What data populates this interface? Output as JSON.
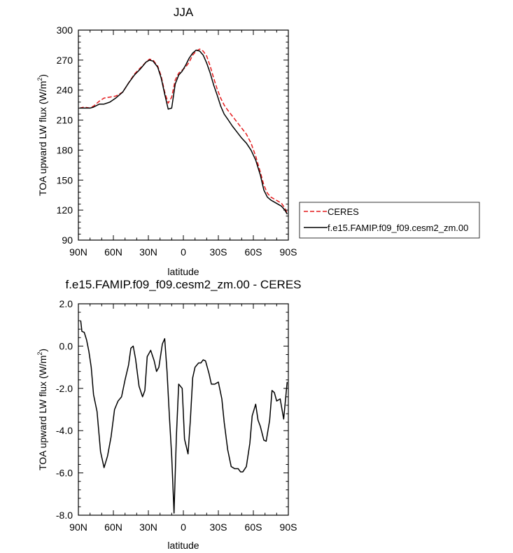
{
  "chart_data": [
    {
      "type": "line",
      "title": "JJA",
      "xlabel": "latitude",
      "ylabel": "TOA upward LW flux (W/m²)",
      "ylabel_main": "TOA upward LW flux (W/m",
      "ylabel_sup": "2",
      "ylabel_tail": ")",
      "xlim": [
        90,
        -90
      ],
      "ylim": [
        90,
        300
      ],
      "xticks": [
        {
          "value": 90,
          "label": "90N"
        },
        {
          "value": 60,
          "label": "60N"
        },
        {
          "value": 30,
          "label": "30N"
        },
        {
          "value": 0,
          "label": "0"
        },
        {
          "value": -30,
          "label": "30S"
        },
        {
          "value": -60,
          "label": "60S"
        },
        {
          "value": -90,
          "label": "90S"
        }
      ],
      "yticks": [
        {
          "value": 90,
          "label": "90"
        },
        {
          "value": 120,
          "label": "120"
        },
        {
          "value": 150,
          "label": "150"
        },
        {
          "value": 180,
          "label": "180"
        },
        {
          "value": 210,
          "label": "210"
        },
        {
          "value": 240,
          "label": "240"
        },
        {
          "value": 270,
          "label": "270"
        },
        {
          "value": 300,
          "label": "300"
        }
      ],
      "legend": {
        "placement": "right"
      },
      "series": [
        {
          "name": "CERES",
          "color": "#e41a1c",
          "dash": "dashed",
          "x": [
            89,
            85,
            80,
            77,
            72,
            68,
            63,
            58,
            52,
            47,
            42,
            37,
            32,
            29,
            26,
            22,
            19,
            16,
            13,
            10,
            7,
            4,
            1,
            -2,
            -5,
            -8,
            -11,
            -14,
            -17,
            -20,
            -23,
            -26,
            -29,
            -32,
            -35,
            -38,
            -42,
            -46,
            -50,
            -54,
            -58,
            -62,
            -66,
            -69,
            -72,
            -75,
            -78,
            -81,
            -84,
            -87,
            -89
          ],
          "y": [
            222,
            223,
            222,
            224,
            229,
            232,
            233,
            234,
            238,
            247,
            256,
            262,
            268,
            271,
            270,
            264,
            254,
            238,
            227,
            233,
            250,
            257,
            260,
            263,
            268,
            275,
            279,
            281,
            279,
            274,
            264,
            252,
            241,
            232,
            225,
            220,
            214,
            208,
            202,
            196,
            187,
            174,
            158,
            145,
            137,
            133,
            131,
            129,
            127,
            122,
            117
          ]
        },
        {
          "name": "f.e15.FAMIP.f09_f09.cesm2_zm.00",
          "color": "#000000",
          "dash": "solid",
          "x": [
            89,
            85,
            80,
            77,
            72,
            68,
            63,
            58,
            52,
            47,
            42,
            37,
            32,
            29,
            26,
            22,
            19,
            16,
            13,
            10,
            7,
            4,
            1,
            -2,
            -5,
            -8,
            -11,
            -14,
            -17,
            -20,
            -23,
            -26,
            -29,
            -32,
            -35,
            -38,
            -42,
            -46,
            -50,
            -54,
            -58,
            -62,
            -66,
            -69,
            -72,
            -75,
            -78,
            -81,
            -84,
            -87,
            -89
          ],
          "y": [
            222,
            222,
            222,
            223,
            226,
            226,
            228,
            232,
            238,
            247,
            255,
            261,
            268,
            270,
            269,
            263,
            252,
            236,
            221,
            222,
            246,
            255,
            259,
            265,
            272,
            277,
            280,
            279,
            275,
            267,
            257,
            245,
            235,
            224,
            216,
            211,
            204,
            198,
            192,
            187,
            180,
            170,
            155,
            140,
            133,
            130,
            128,
            126,
            124,
            120,
            116
          ]
        }
      ]
    },
    {
      "type": "line",
      "title": "f.e15.FAMIP.f09_f09.cesm2_zm.00 - CERES",
      "xlabel": "latitude",
      "ylabel": "TOA upward LW flux (W/m²)",
      "ylabel_main": "TOA upward LW flux (W/m",
      "ylabel_sup": "2",
      "ylabel_tail": ")",
      "xlim": [
        90,
        -90
      ],
      "ylim": [
        -8,
        2
      ],
      "xticks": [
        {
          "value": 90,
          "label": "90N"
        },
        {
          "value": 60,
          "label": "60N"
        },
        {
          "value": 30,
          "label": "30N"
        },
        {
          "value": 0,
          "label": "0"
        },
        {
          "value": -30,
          "label": "30S"
        },
        {
          "value": -60,
          "label": "60S"
        },
        {
          "value": -90,
          "label": "90S"
        }
      ],
      "yticks": [
        {
          "value": 2,
          "label": "2.0"
        },
        {
          "value": 0,
          "label": "0.0"
        },
        {
          "value": -2,
          "label": "-2.0"
        },
        {
          "value": -4,
          "label": "-4.0"
        },
        {
          "value": -6,
          "label": "-6.0"
        },
        {
          "value": -8,
          "label": "-8.0"
        }
      ],
      "series": [
        {
          "color": "#000000",
          "dash": "solid",
          "x": [
            88,
            87,
            85,
            83,
            81,
            79,
            77,
            74,
            71,
            68,
            65,
            62,
            59,
            56,
            53,
            50,
            47,
            45,
            43,
            41,
            38,
            35,
            33,
            31,
            28,
            25,
            23,
            21,
            18,
            16,
            14,
            12,
            10,
            8,
            6,
            4,
            1,
            -1,
            -4,
            -6,
            -8,
            -10,
            -13,
            -15,
            -17,
            -19,
            -22,
            -24,
            -27,
            -30,
            -33,
            -35,
            -38,
            -41,
            -44,
            -47,
            -49,
            -51,
            -54,
            -57,
            -59,
            -62,
            -64,
            -66,
            -69,
            -71,
            -74,
            -76,
            -78,
            -80,
            -83,
            -86,
            -89
          ],
          "y": [
            1.2,
            0.7,
            0.65,
            0.3,
            -0.25,
            -1.0,
            -2.3,
            -3.1,
            -5.0,
            -5.75,
            -5.2,
            -4.3,
            -3.0,
            -2.6,
            -2.4,
            -1.6,
            -0.9,
            -0.1,
            0.0,
            -0.6,
            -1.9,
            -2.4,
            -2.1,
            -0.5,
            -0.2,
            -0.7,
            -1.2,
            -1.0,
            0.1,
            0.35,
            -1.2,
            -3.3,
            -5.2,
            -7.9,
            -4.3,
            -1.8,
            -2.0,
            -4.4,
            -5.1,
            -3.5,
            -1.5,
            -1.0,
            -0.8,
            -0.8,
            -0.65,
            -0.7,
            -1.3,
            -1.8,
            -1.8,
            -1.7,
            -2.5,
            -3.6,
            -4.9,
            -5.7,
            -5.8,
            -5.8,
            -5.95,
            -5.95,
            -5.7,
            -4.6,
            -3.3,
            -2.75,
            -3.5,
            -3.8,
            -4.45,
            -4.5,
            -3.5,
            -2.1,
            -2.2,
            -2.6,
            -2.5,
            -3.45,
            -1.7
          ]
        }
      ]
    }
  ]
}
